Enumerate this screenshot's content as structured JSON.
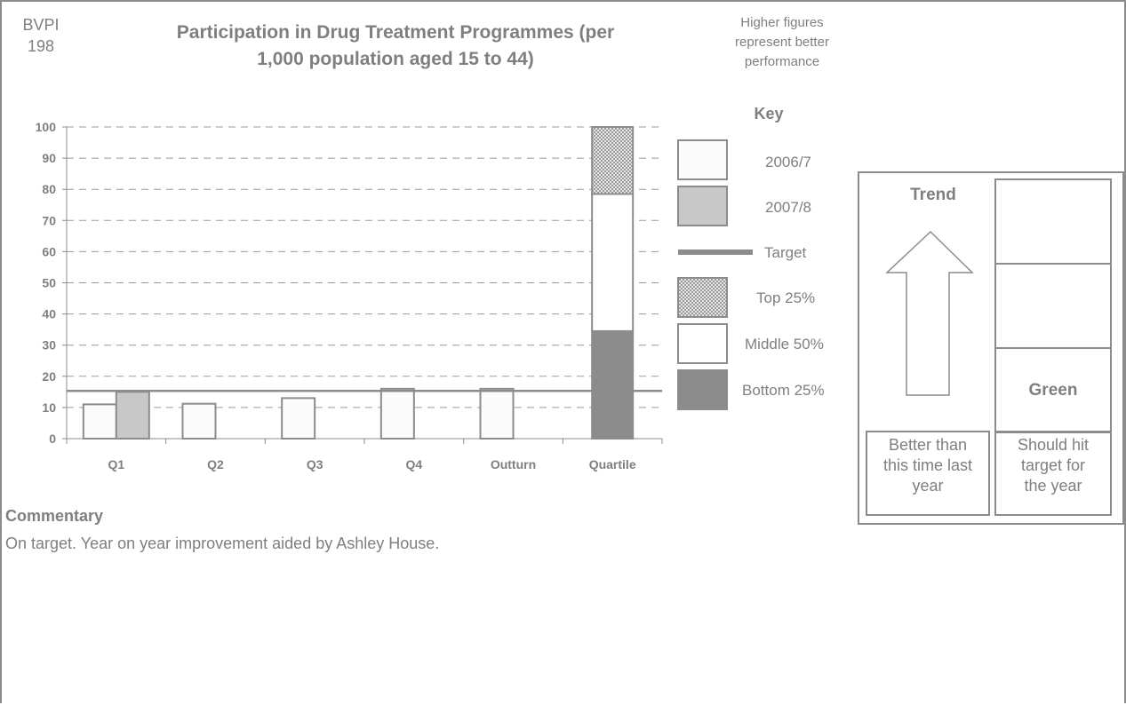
{
  "header": {
    "bvpi_line1": "BVPI",
    "bvpi_line2": "198",
    "title_line1": "Participation in Drug Treatment Programmes (per",
    "title_line2": "1,000 population aged 15 to 44)",
    "note_line1": "Higher figures",
    "note_line2": "represent better",
    "note_line3": "performance"
  },
  "key": {
    "title": "Key",
    "items": [
      {
        "label": "2006/7",
        "color": "#fbfbfb"
      },
      {
        "label": "2007/8",
        "color": "#c8c8c8"
      },
      {
        "label": "Target",
        "color": "#8c8c8c"
      },
      {
        "label": "Top 25%",
        "color": "#bdbdbd"
      },
      {
        "label": "Middle 50%",
        "color": "#ffffff"
      },
      {
        "label": "Bottom 25%",
        "color": "#8c8c8c"
      }
    ]
  },
  "chart_data": {
    "type": "bar",
    "categories": [
      "Q1",
      "Q2",
      "Q3",
      "Q4",
      "Outturn",
      "Quartile"
    ],
    "ylim": [
      0,
      100
    ],
    "yticks": [
      0,
      10,
      20,
      30,
      40,
      50,
      60,
      70,
      80,
      90,
      100
    ],
    "grid": true,
    "series": [
      {
        "name": "2006/7",
        "values": [
          11,
          11.2,
          13,
          16,
          16,
          null
        ]
      },
      {
        "name": "2007/8",
        "values": [
          15,
          null,
          null,
          null,
          null,
          null
        ]
      }
    ],
    "target": 15.3,
    "quartile_bands": [
      {
        "name": "Bottom 25%",
        "from": 0,
        "to": 34.5
      },
      {
        "name": "Middle 50%",
        "from": 34.5,
        "to": 78.5
      },
      {
        "name": "Top 25%",
        "from": 78.5,
        "to": 100
      }
    ]
  },
  "status": {
    "trend_title": "Trend",
    "traffic_light": "Green",
    "trend_caption_line1": "Better than",
    "trend_caption_line2": "this time last",
    "trend_caption_line3": "year",
    "target_caption_line1": "Should hit",
    "target_caption_line2": "target for",
    "target_caption_line3": "the year"
  },
  "commentary": {
    "heading": "Commentary",
    "text": "On target. Year on year improvement aided by Ashley House."
  }
}
